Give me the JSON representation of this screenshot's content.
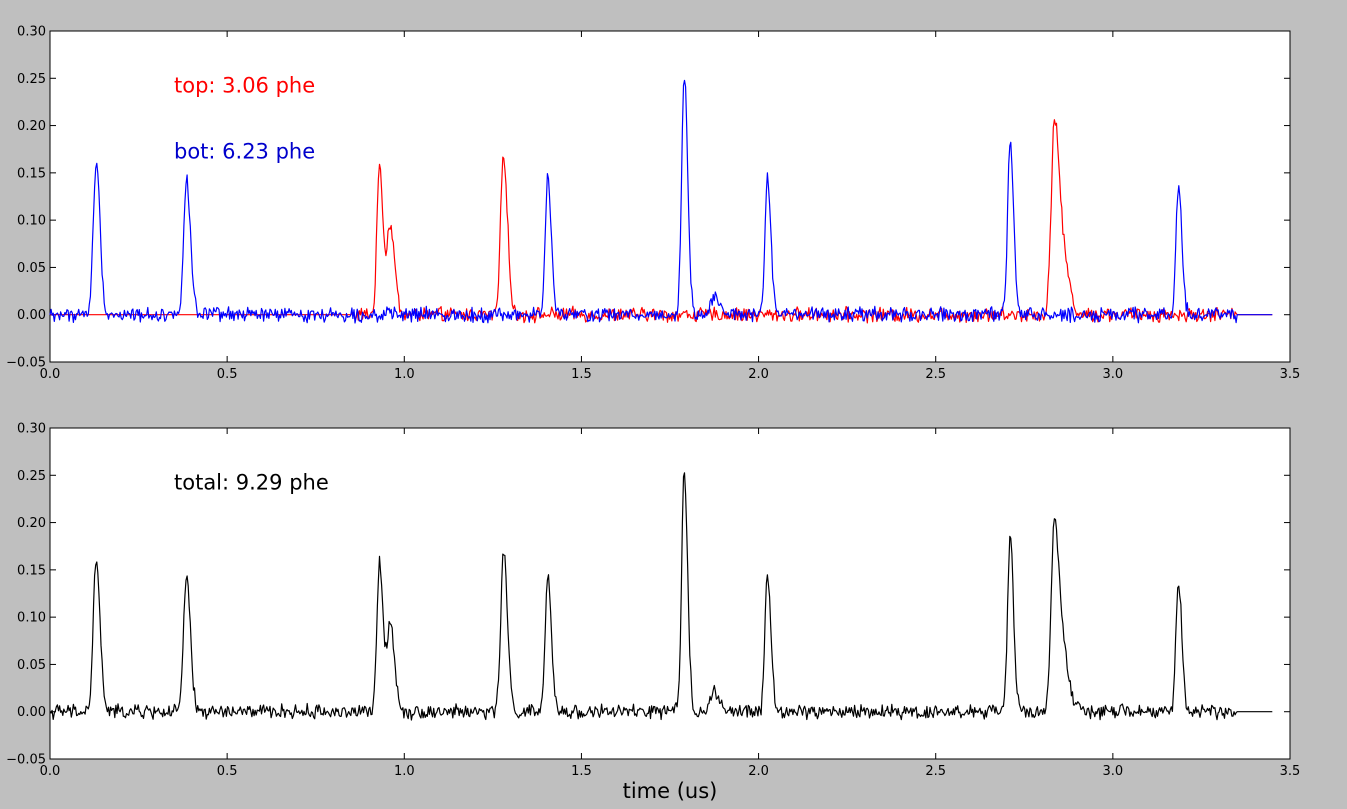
{
  "chart_data": [
    {
      "type": "line",
      "title": "",
      "xlabel": "",
      "ylabel": "",
      "xlim": [
        0.0,
        3.5
      ],
      "ylim": [
        -0.05,
        0.3
      ],
      "xticks": [
        0.0,
        0.5,
        1.0,
        1.5,
        2.0,
        2.5,
        3.0,
        3.5
      ],
      "xtick_labels": [
        "0.0",
        "0.5",
        "1.0",
        "1.5",
        "2.0",
        "2.5",
        "3.0",
        "3.5"
      ],
      "yticks": [
        -0.05,
        0.0,
        0.05,
        0.1,
        0.15,
        0.2,
        0.25,
        0.3
      ],
      "ytick_labels": [
        "−0.05",
        "0.00",
        "0.05",
        "0.10",
        "0.15",
        "0.20",
        "0.25",
        "0.30"
      ],
      "grid": false,
      "annotations": [
        {
          "text": "top: 3.06 phe",
          "color": "#ff0000",
          "x": 0.35,
          "y": 0.235
        },
        {
          "text": "bot: 6.23 phe",
          "color": "#0000cc",
          "x": 0.35,
          "y": 0.165
        }
      ],
      "series": [
        {
          "color": "#ff0000",
          "x_range": [
            0.0,
            3.45
          ],
          "noise_start": 0.85,
          "peaks": [
            [
              0.93,
              0.16,
              0.007
            ],
            [
              0.96,
              0.095,
              0.009
            ],
            [
              1.28,
              0.172,
              0.008
            ],
            [
              2.835,
              0.202,
              0.009
            ],
            [
              2.86,
              0.06,
              0.012
            ]
          ]
        },
        {
          "color": "#0000ff",
          "x_range": [
            0.0,
            3.45
          ],
          "noise_start": 0.0,
          "peaks": [
            [
              0.13,
              0.16,
              0.008
            ],
            [
              0.385,
              0.143,
              0.008
            ],
            [
              1.405,
              0.145,
              0.007
            ],
            [
              1.79,
              0.257,
              0.007
            ],
            [
              1.875,
              0.022,
              0.009
            ],
            [
              2.025,
              0.143,
              0.007
            ],
            [
              2.71,
              0.185,
              0.007
            ],
            [
              3.185,
              0.138,
              0.007
            ]
          ]
        }
      ]
    },
    {
      "type": "line",
      "title": "",
      "xlabel": "time (us)",
      "ylabel": "",
      "xlim": [
        0.0,
        3.5
      ],
      "ylim": [
        -0.05,
        0.3
      ],
      "xticks": [
        0.0,
        0.5,
        1.0,
        1.5,
        2.0,
        2.5,
        3.0,
        3.5
      ],
      "xtick_labels": [
        "0.0",
        "0.5",
        "1.0",
        "1.5",
        "2.0",
        "2.5",
        "3.0",
        "3.5"
      ],
      "yticks": [
        -0.05,
        0.0,
        0.05,
        0.1,
        0.15,
        0.2,
        0.25,
        0.3
      ],
      "ytick_labels": [
        "−0.05",
        "0.00",
        "0.05",
        "0.10",
        "0.15",
        "0.20",
        "0.25",
        "0.30"
      ],
      "grid": false,
      "annotations": [
        {
          "text": "total: 9.29 phe",
          "color": "#000000",
          "x": 0.35,
          "y": 0.235
        }
      ],
      "series": [
        {
          "color": "#000000",
          "x_range": [
            0.0,
            3.45
          ],
          "noise_start": 0.0,
          "peaks": [
            [
              0.13,
              0.16,
              0.008
            ],
            [
              0.385,
              0.143,
              0.008
            ],
            [
              0.93,
              0.16,
              0.007
            ],
            [
              0.96,
              0.095,
              0.009
            ],
            [
              1.28,
              0.168,
              0.008
            ],
            [
              1.405,
              0.145,
              0.007
            ],
            [
              1.79,
              0.255,
              0.007
            ],
            [
              1.875,
              0.022,
              0.009
            ],
            [
              2.025,
              0.145,
              0.007
            ],
            [
              2.71,
              0.185,
              0.007
            ],
            [
              2.835,
              0.197,
              0.009
            ],
            [
              2.86,
              0.06,
              0.012
            ],
            [
              3.185,
              0.138,
              0.007
            ]
          ]
        }
      ]
    }
  ]
}
